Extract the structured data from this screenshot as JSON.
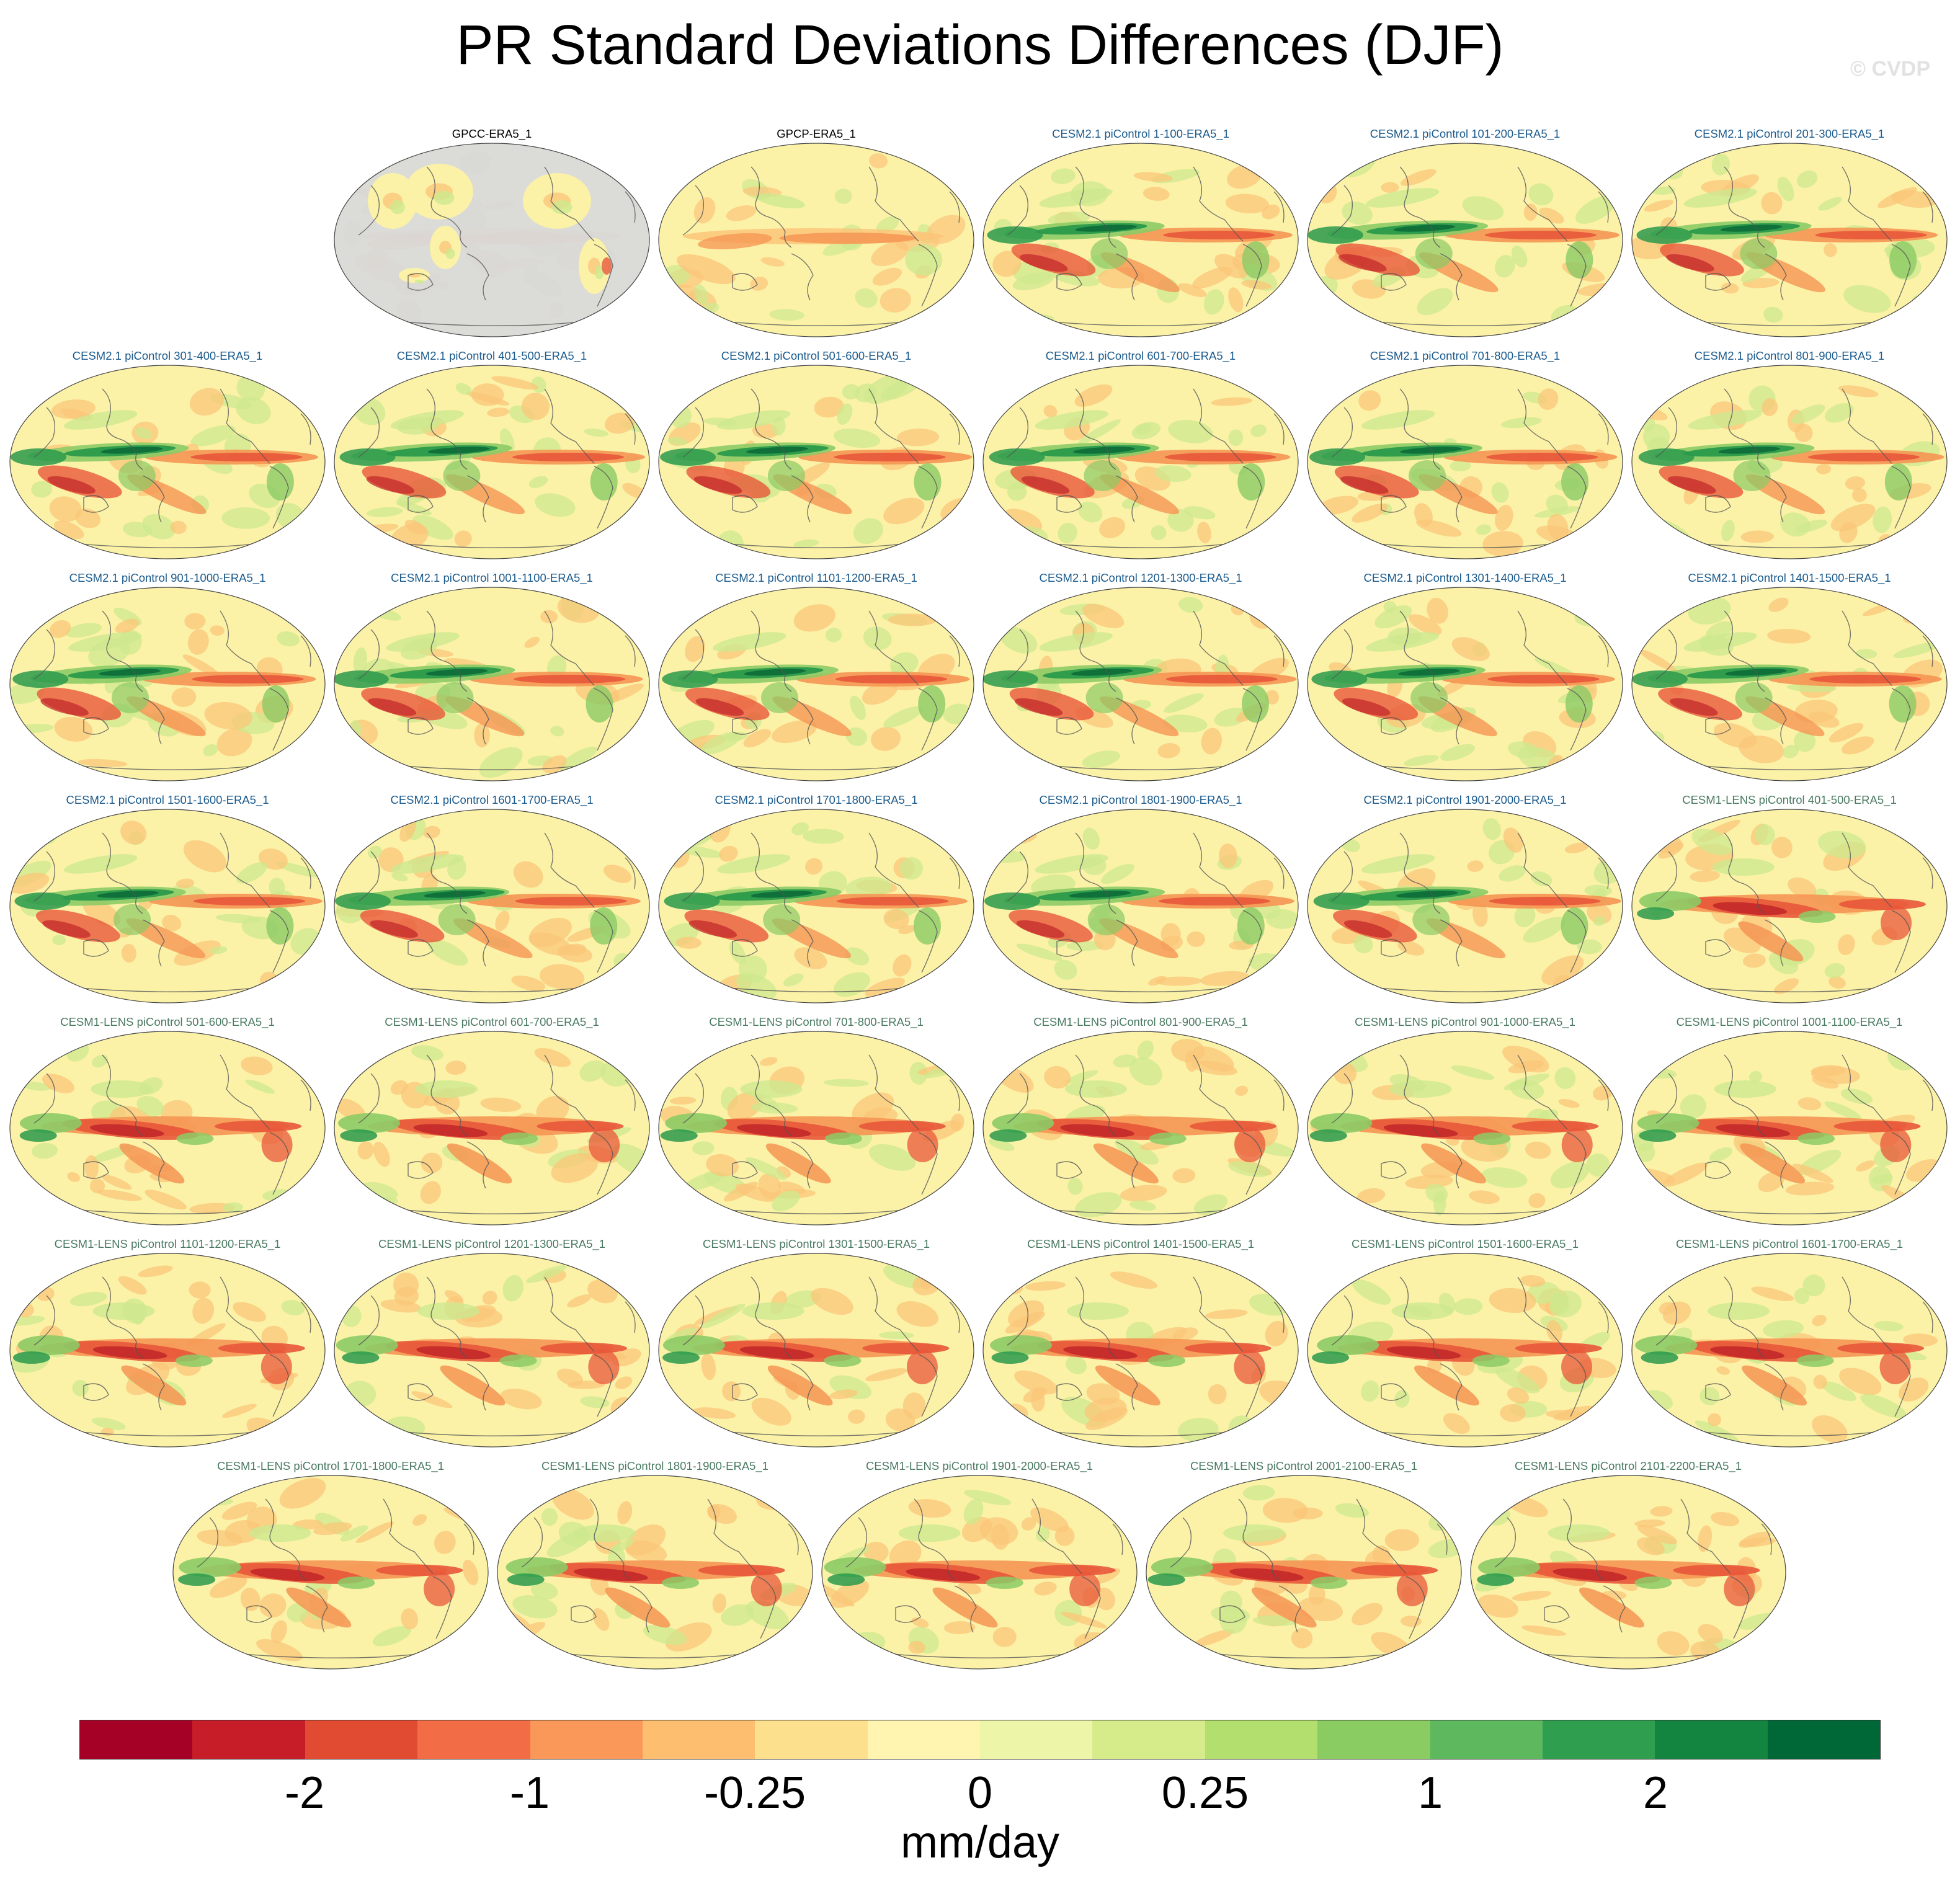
{
  "title": "PR Standard Deviations Differences (DJF)",
  "watermark": "© CVDP",
  "panels": [
    {
      "label": "GPCC-ERA5_1",
      "group": "obs",
      "masked": true,
      "pattern": "obs"
    },
    {
      "label": "GPCP-ERA5_1",
      "group": "obs",
      "pattern": "obs"
    },
    {
      "label": "CESM2.1 piControl 1-100-ERA5_1",
      "group": "cesm2",
      "pattern": "cesm2"
    },
    {
      "label": "CESM2.1 piControl 101-200-ERA5_1",
      "group": "cesm2",
      "pattern": "cesm2"
    },
    {
      "label": "CESM2.1 piControl 201-300-ERA5_1",
      "group": "cesm2",
      "pattern": "cesm2"
    },
    {
      "label": "CESM2.1 piControl 301-400-ERA5_1",
      "group": "cesm2",
      "pattern": "cesm2"
    },
    {
      "label": "CESM2.1 piControl 401-500-ERA5_1",
      "group": "cesm2",
      "pattern": "cesm2"
    },
    {
      "label": "CESM2.1 piControl 501-600-ERA5_1",
      "group": "cesm2",
      "pattern": "cesm2"
    },
    {
      "label": "CESM2.1 piControl 601-700-ERA5_1",
      "group": "cesm2",
      "pattern": "cesm2"
    },
    {
      "label": "CESM2.1 piControl 701-800-ERA5_1",
      "group": "cesm2",
      "pattern": "cesm2"
    },
    {
      "label": "CESM2.1 piControl 801-900-ERA5_1",
      "group": "cesm2",
      "pattern": "cesm2"
    },
    {
      "label": "CESM2.1 piControl 901-1000-ERA5_1",
      "group": "cesm2",
      "pattern": "cesm2"
    },
    {
      "label": "CESM2.1 piControl 1001-1100-ERA5_1",
      "group": "cesm2",
      "pattern": "cesm2"
    },
    {
      "label": "CESM2.1 piControl 1101-1200-ERA5_1",
      "group": "cesm2",
      "pattern": "cesm2"
    },
    {
      "label": "CESM2.1 piControl 1201-1300-ERA5_1",
      "group": "cesm2",
      "pattern": "cesm2"
    },
    {
      "label": "CESM2.1 piControl 1301-1400-ERA5_1",
      "group": "cesm2",
      "pattern": "cesm2"
    },
    {
      "label": "CESM2.1 piControl 1401-1500-ERA5_1",
      "group": "cesm2",
      "pattern": "cesm2"
    },
    {
      "label": "CESM2.1 piControl 1501-1600-ERA5_1",
      "group": "cesm2",
      "pattern": "cesm2"
    },
    {
      "label": "CESM2.1 piControl 1601-1700-ERA5_1",
      "group": "cesm2",
      "pattern": "cesm2"
    },
    {
      "label": "CESM2.1 piControl 1701-1800-ERA5_1",
      "group": "cesm2",
      "pattern": "cesm2"
    },
    {
      "label": "CESM2.1 piControl 1801-1900-ERA5_1",
      "group": "cesm2",
      "pattern": "cesm2"
    },
    {
      "label": "CESM2.1 piControl 1901-2000-ERA5_1",
      "group": "cesm2",
      "pattern": "cesm2"
    },
    {
      "label": "CESM1-LENS piControl 401-500-ERA5_1",
      "group": "cesm1",
      "pattern": "cesm1"
    },
    {
      "label": "CESM1-LENS piControl 501-600-ERA5_1",
      "group": "cesm1",
      "pattern": "cesm1"
    },
    {
      "label": "CESM1-LENS piControl 601-700-ERA5_1",
      "group": "cesm1",
      "pattern": "cesm1"
    },
    {
      "label": "CESM1-LENS piControl 701-800-ERA5_1",
      "group": "cesm1",
      "pattern": "cesm1"
    },
    {
      "label": "CESM1-LENS piControl 801-900-ERA5_1",
      "group": "cesm1",
      "pattern": "cesm1"
    },
    {
      "label": "CESM1-LENS piControl 901-1000-ERA5_1",
      "group": "cesm1",
      "pattern": "cesm1"
    },
    {
      "label": "CESM1-LENS piControl 1001-1100-ERA5_1",
      "group": "cesm1",
      "pattern": "cesm1"
    },
    {
      "label": "CESM1-LENS piControl 1101-1200-ERA5_1",
      "group": "cesm1",
      "pattern": "cesm1"
    },
    {
      "label": "CESM1-LENS piControl 1201-1300-ERA5_1",
      "group": "cesm1",
      "pattern": "cesm1"
    },
    {
      "label": "CESM1-LENS piControl 1301-1500-ERA5_1",
      "group": "cesm1",
      "pattern": "cesm1"
    },
    {
      "label": "CESM1-LENS piControl 1401-1500-ERA5_1",
      "group": "cesm1",
      "pattern": "cesm1"
    },
    {
      "label": "CESM1-LENS piControl 1501-1600-ERA5_1",
      "group": "cesm1",
      "pattern": "cesm1"
    },
    {
      "label": "CESM1-LENS piControl 1601-1700-ERA5_1",
      "group": "cesm1",
      "pattern": "cesm1"
    },
    {
      "label": "CESM1-LENS piControl 1701-1800-ERA5_1",
      "group": "cesm1",
      "pattern": "cesm1"
    },
    {
      "label": "CESM1-LENS piControl 1801-1900-ERA5_1",
      "group": "cesm1",
      "pattern": "cesm1"
    },
    {
      "label": "CESM1-LENS piControl 1901-2000-ERA5_1",
      "group": "cesm1",
      "pattern": "cesm1"
    },
    {
      "label": "CESM1-LENS piControl 2001-2100-ERA5_1",
      "group": "cesm1",
      "pattern": "cesm1"
    },
    {
      "label": "CESM1-LENS piControl 2101-2200-ERA5_1",
      "group": "cesm1",
      "pattern": "cesm1"
    }
  ],
  "colorbar": {
    "colors": [
      "#a50026",
      "#c61d28",
      "#e14b32",
      "#f26d45",
      "#f99858",
      "#fdbf6f",
      "#fde08d",
      "#fff5b0",
      "#edf5a8",
      "#d6ec8a",
      "#b2df6e",
      "#8acc62",
      "#5db85e",
      "#2f9e4f",
      "#148540",
      "#006837"
    ],
    "tick_labels": [
      "-2",
      "-1",
      "-0.25",
      "0",
      "0.25",
      "1",
      "2"
    ],
    "units": "mm/day"
  },
  "palette": {
    "background": "#fbf2a8",
    "deep_red": "#c42a2a",
    "red": "#e8573a",
    "orange": "#f59553",
    "light_orange": "#fbc57a",
    "light_green": "#cde88e",
    "green": "#8ccb65",
    "dark_green": "#2a9a4c",
    "deepest_green": "#0f6e39",
    "land_mask": "#d9d9d9",
    "coast": "#555555"
  }
}
